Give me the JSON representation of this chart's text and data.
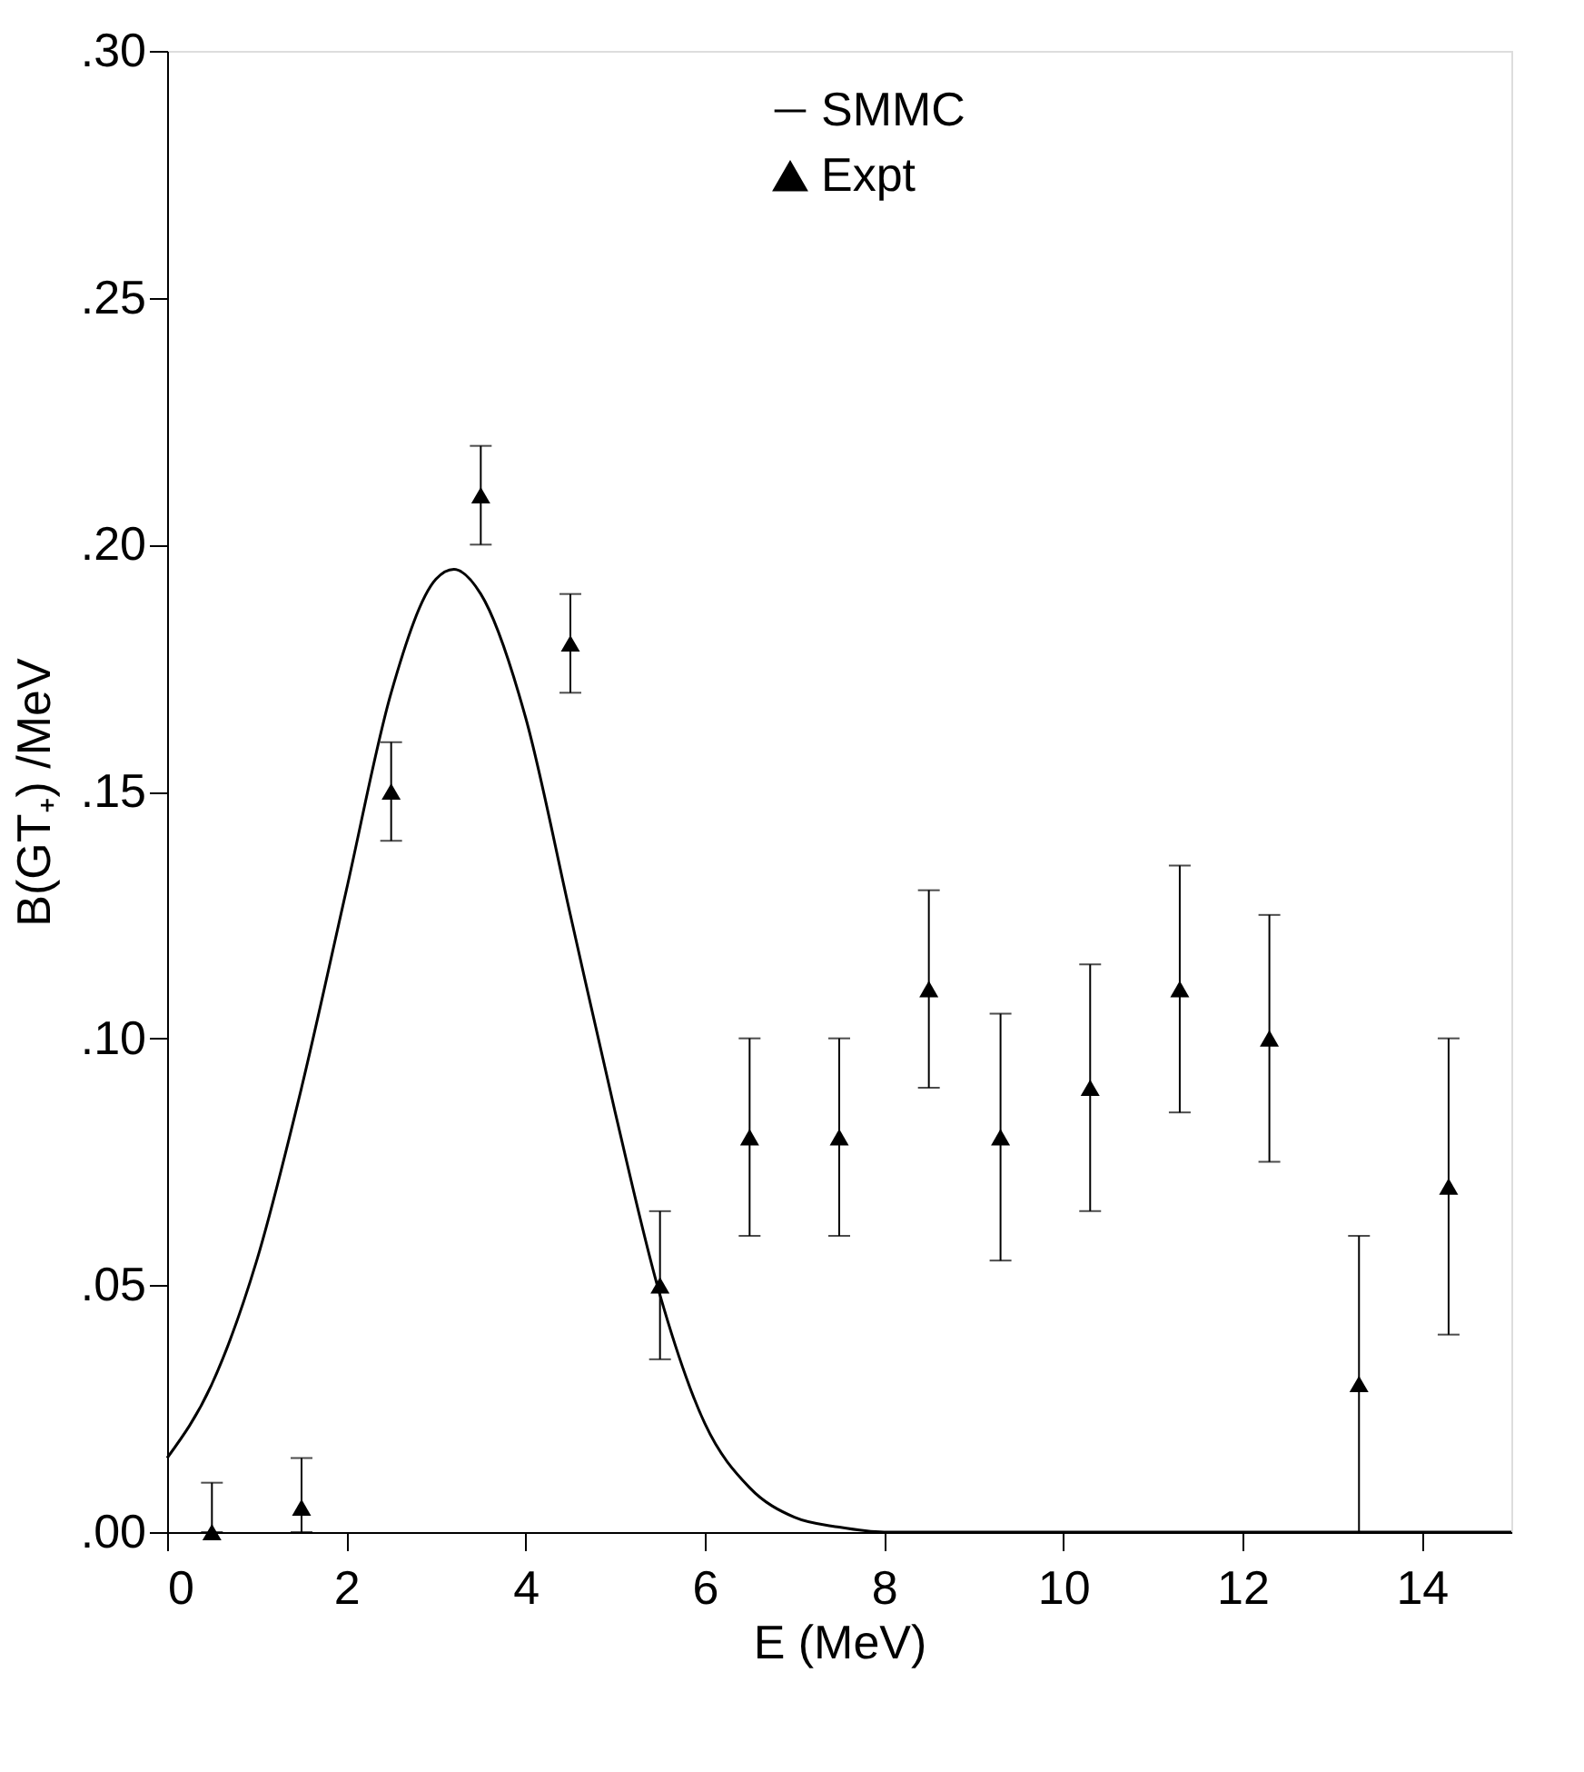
{
  "chart_data": {
    "type": "scatter",
    "xlabel": "E  (MeV)",
    "ylabel": "B(GT₊)  /MeV",
    "xlim": [
      0,
      15
    ],
    "xticks": [
      0,
      2,
      4,
      6,
      8,
      10,
      12,
      14
    ],
    "ylim": [
      0,
      0.3
    ],
    "yticks": [
      {
        "value": 0,
        "label": ".00"
      },
      {
        "value": 0.05,
        "label": ".05"
      },
      {
        "value": 0.1,
        "label": ".10"
      },
      {
        "value": 0.15,
        "label": ".15"
      },
      {
        "value": 0.2,
        "label": ".20"
      },
      {
        "value": 0.25,
        "label": ".25"
      },
      {
        "value": 0.3,
        "label": ".30"
      }
    ],
    "grid": false,
    "legend": "top",
    "series": [
      {
        "name": "SMMC",
        "type": "line",
        "color": "#000000",
        "marker": "none",
        "line_style": "solid",
        "x": [
          0,
          0.5,
          1,
          1.5,
          2,
          2.5,
          3,
          3.2,
          3.5,
          4,
          4.5,
          5,
          5.5,
          6,
          6.5,
          7,
          7.5,
          8,
          15
        ],
        "values": [
          0.015,
          0.03,
          0.055,
          0.09,
          0.13,
          0.17,
          0.193,
          0.195,
          0.19,
          0.165,
          0.125,
          0.085,
          0.048,
          0.022,
          0.009,
          0.003,
          0.001,
          0,
          0
        ]
      },
      {
        "name": "Expt",
        "color": "#000000",
        "marker": "triangle",
        "x": [
          0.5,
          1.5,
          2.5,
          3.5,
          4.5,
          5.5,
          6.5,
          7.5,
          8.5,
          9.3,
          10.3,
          11.3,
          12.3,
          13.3,
          14.3
        ],
        "values": [
          0,
          0.005,
          0.15,
          0.21,
          0.18,
          0.05,
          0.08,
          0.08,
          0.11,
          0.08,
          0.09,
          0.11,
          0.1,
          0.03,
          0.07
        ],
        "errors": [
          [
            0,
            0.01
          ],
          [
            0,
            0.015
          ],
          0.01,
          0.01,
          0.01,
          0.015,
          0.02,
          0.02,
          0.02,
          0.025,
          0.025,
          0.025,
          0.025,
          0.03,
          0.03
        ]
      }
    ]
  }
}
